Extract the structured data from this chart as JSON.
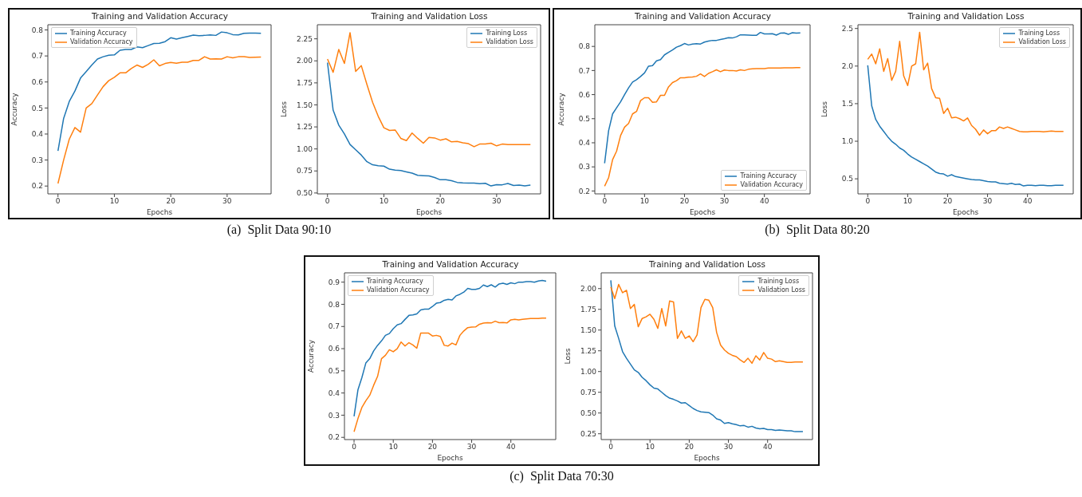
{
  "chart_data": [
    {
      "type": "line",
      "title": "Training and Validation Accuracy",
      "xlabel": "Epochs",
      "ylabel": "Accuracy",
      "annotations": [
        "(a)  Split Data 90:10"
      ],
      "legend": "top left",
      "xlim": [
        -1.8,
        37.8
      ],
      "xticks": [
        0,
        10,
        20,
        30
      ],
      "ylim": [
        0.17,
        0.82
      ],
      "yticks": [
        0.2,
        0.3,
        0.4,
        0.5,
        0.6,
        0.7,
        0.8
      ],
      "x": [
        0,
        1,
        2,
        3,
        4,
        5,
        6,
        7,
        8,
        9,
        10,
        11,
        12,
        13,
        14,
        15,
        16,
        17,
        18,
        19,
        20,
        21,
        22,
        23,
        24,
        25,
        26,
        27,
        28,
        29,
        30,
        31,
        32,
        33,
        34,
        35,
        36
      ],
      "series": [
        {
          "name": "Training Accuracy",
          "color": "#1f77b4",
          "values": [
            0.335,
            0.46,
            0.525,
            0.565,
            0.615,
            0.64,
            0.665,
            0.688,
            0.697,
            0.703,
            0.704,
            0.722,
            0.725,
            0.725,
            0.735,
            0.732,
            0.74,
            0.748,
            0.749,
            0.755,
            0.77,
            0.765,
            0.77,
            0.775,
            0.78,
            0.778,
            0.779,
            0.781,
            0.779,
            0.792,
            0.789,
            0.782,
            0.781,
            0.787,
            0.788,
            0.788,
            0.787
          ]
        },
        {
          "name": "Validation Accuracy",
          "color": "#ff7f0e",
          "values": [
            0.21,
            0.3,
            0.38,
            0.425,
            0.407,
            0.5,
            0.517,
            0.55,
            0.582,
            0.605,
            0.618,
            0.635,
            0.635,
            0.652,
            0.665,
            0.656,
            0.668,
            0.685,
            0.662,
            0.671,
            0.675,
            0.672,
            0.676,
            0.676,
            0.683,
            0.683,
            0.697,
            0.688,
            0.689,
            0.688,
            0.697,
            0.693,
            0.697,
            0.697,
            0.694,
            0.695,
            0.696
          ]
        }
      ]
    },
    {
      "type": "line",
      "title": "Training and Validation Loss",
      "xlabel": "Epochs",
      "ylabel": "Loss",
      "legend": "top right",
      "xlim": [
        -1.8,
        37.8
      ],
      "xticks": [
        0,
        10,
        20,
        30
      ],
      "ylim": [
        0.49,
        2.41
      ],
      "yticks": [
        {
          "value": 0.5,
          "label": "0.50"
        },
        0.75,
        {
          "value": 1,
          "label": "1.00"
        },
        1.25,
        {
          "value": 1.5,
          "label": "1.50"
        },
        1.75,
        {
          "value": 2,
          "label": "2.00"
        },
        2.25
      ],
      "x": [
        0,
        1,
        2,
        3,
        4,
        5,
        6,
        7,
        8,
        9,
        10,
        11,
        12,
        13,
        14,
        15,
        16,
        17,
        18,
        19,
        20,
        21,
        22,
        23,
        24,
        25,
        26,
        27,
        28,
        29,
        30,
        31,
        32,
        33,
        34,
        35,
        36
      ],
      "series": [
        {
          "name": "Training Loss",
          "color": "#1f77b4",
          "values": [
            1.98,
            1.44,
            1.27,
            1.17,
            1.05,
            0.99,
            0.93,
            0.855,
            0.82,
            0.81,
            0.805,
            0.77,
            0.76,
            0.755,
            0.74,
            0.725,
            0.7,
            0.697,
            0.693,
            0.675,
            0.65,
            0.65,
            0.64,
            0.62,
            0.615,
            0.613,
            0.612,
            0.605,
            0.61,
            0.58,
            0.595,
            0.593,
            0.607,
            0.585,
            0.59,
            0.58,
            0.59
          ]
        },
        {
          "name": "Validation Loss",
          "color": "#ff7f0e",
          "values": [
            2.02,
            1.87,
            2.13,
            1.97,
            2.32,
            1.88,
            1.945,
            1.73,
            1.53,
            1.37,
            1.24,
            1.21,
            1.215,
            1.12,
            1.095,
            1.18,
            1.12,
            1.065,
            1.13,
            1.125,
            1.1,
            1.115,
            1.08,
            1.085,
            1.07,
            1.06,
            1.025,
            1.055,
            1.055,
            1.065,
            1.035,
            1.055,
            1.05,
            1.05,
            1.05,
            1.05,
            1.05
          ]
        }
      ]
    },
    {
      "type": "line",
      "title": "Training and Validation Accuracy",
      "xlabel": "Epochs",
      "ylabel": "Accuracy",
      "annotations": [
        "(b)  Split Data 80:20"
      ],
      "legend": "bottom right",
      "xlim": [
        -2.45,
        51.45
      ],
      "xticks": [
        0,
        10,
        20,
        30,
        40
      ],
      "ylim": [
        0.188,
        0.89
      ],
      "yticks": [
        0.2,
        0.3,
        0.4,
        0.5,
        0.6,
        0.7,
        0.8
      ],
      "x": [
        0,
        1,
        2,
        3,
        4,
        5,
        6,
        7,
        8,
        9,
        10,
        11,
        12,
        13,
        14,
        15,
        16,
        17,
        18,
        19,
        20,
        21,
        22,
        23,
        24,
        25,
        26,
        27,
        28,
        29,
        30,
        31,
        32,
        33,
        34,
        35,
        36,
        37,
        38,
        39,
        40,
        41,
        42,
        43,
        44,
        45,
        46,
        47,
        48,
        49
      ],
      "series": [
        {
          "name": "Training Accuracy",
          "color": "#1f77b4",
          "values": [
            0.315,
            0.45,
            0.52,
            0.545,
            0.57,
            0.6,
            0.628,
            0.652,
            0.662,
            0.675,
            0.69,
            0.718,
            0.72,
            0.74,
            0.745,
            0.765,
            0.775,
            0.785,
            0.797,
            0.803,
            0.812,
            0.806,
            0.81,
            0.811,
            0.81,
            0.818,
            0.822,
            0.825,
            0.825,
            0.829,
            0.832,
            0.836,
            0.835,
            0.84,
            0.848,
            0.848,
            0.847,
            0.846,
            0.846,
            0.858,
            0.852,
            0.852,
            0.853,
            0.847,
            0.855,
            0.856,
            0.85,
            0.857,
            0.855,
            0.856
          ]
        },
        {
          "name": "Validation Accuracy",
          "color": "#ff7f0e",
          "values": [
            0.22,
            0.255,
            0.33,
            0.365,
            0.43,
            0.465,
            0.48,
            0.52,
            0.53,
            0.575,
            0.587,
            0.587,
            0.568,
            0.57,
            0.597,
            0.597,
            0.632,
            0.65,
            0.658,
            0.67,
            0.67,
            0.672,
            0.673,
            0.676,
            0.686,
            0.675,
            0.688,
            0.695,
            0.703,
            0.695,
            0.702,
            0.7,
            0.7,
            0.698,
            0.703,
            0.7,
            0.705,
            0.707,
            0.708,
            0.708,
            0.708,
            0.71,
            0.71,
            0.71,
            0.71,
            0.711,
            0.711,
            0.711,
            0.712,
            0.712
          ]
        }
      ]
    },
    {
      "type": "line",
      "title": "Training and Validation Loss",
      "xlabel": "Epochs",
      "ylabel": "Loss",
      "legend": "top right",
      "xlim": [
        -2.45,
        51.45
      ],
      "xticks": [
        0,
        10,
        20,
        30,
        40
      ],
      "ylim": [
        0.3,
        2.55
      ],
      "yticks": [
        0.5,
        {
          "value": 1,
          "label": "1.0"
        },
        1.5,
        {
          "value": 2,
          "label": "2.0"
        },
        2.5
      ],
      "x": [
        0,
        1,
        2,
        3,
        4,
        5,
        6,
        7,
        8,
        9,
        10,
        11,
        12,
        13,
        14,
        15,
        16,
        17,
        18,
        19,
        20,
        21,
        22,
        23,
        24,
        25,
        26,
        27,
        28,
        29,
        30,
        31,
        32,
        33,
        34,
        35,
        36,
        37,
        38,
        39,
        40,
        41,
        42,
        43,
        44,
        45,
        46,
        47,
        48,
        49
      ],
      "series": [
        {
          "name": "Training Loss",
          "color": "#1f77b4",
          "values": [
            2.01,
            1.47,
            1.29,
            1.2,
            1.13,
            1.06,
            1.0,
            0.96,
            0.91,
            0.88,
            0.83,
            0.79,
            0.76,
            0.73,
            0.7,
            0.67,
            0.63,
            0.59,
            0.57,
            0.565,
            0.535,
            0.555,
            0.53,
            0.52,
            0.51,
            0.5,
            0.49,
            0.485,
            0.485,
            0.475,
            0.465,
            0.46,
            0.46,
            0.44,
            0.435,
            0.43,
            0.44,
            0.425,
            0.43,
            0.405,
            0.415,
            0.415,
            0.41,
            0.415,
            0.415,
            0.41,
            0.41,
            0.415,
            0.415,
            0.415
          ]
        },
        {
          "name": "Validation Loss",
          "color": "#ff7f0e",
          "values": [
            2.09,
            2.16,
            2.03,
            2.23,
            1.93,
            2.1,
            1.81,
            1.93,
            2.33,
            1.87,
            1.74,
            2.0,
            2.03,
            2.45,
            1.95,
            2.04,
            1.7,
            1.58,
            1.57,
            1.37,
            1.44,
            1.31,
            1.32,
            1.3,
            1.27,
            1.31,
            1.21,
            1.16,
            1.08,
            1.15,
            1.1,
            1.14,
            1.14,
            1.19,
            1.17,
            1.19,
            1.17,
            1.15,
            1.13,
            1.125,
            1.125,
            1.13,
            1.13,
            1.13,
            1.125,
            1.13,
            1.135,
            1.13,
            1.13,
            1.13
          ]
        }
      ]
    },
    {
      "type": "line",
      "title": "Training and Validation Accuracy",
      "xlabel": "Epochs",
      "ylabel": "Accuracy",
      "annotations": [
        "(c)  Split Data 70:30"
      ],
      "legend": "top left",
      "xlim": [
        -2.45,
        51.45
      ],
      "xticks": [
        0,
        10,
        20,
        30,
        40
      ],
      "ylim": [
        0.19,
        0.942
      ],
      "yticks": [
        0.2,
        0.3,
        0.4,
        0.5,
        0.6,
        0.7,
        0.8,
        0.9
      ],
      "x": [
        0,
        1,
        2,
        3,
        4,
        5,
        6,
        7,
        8,
        9,
        10,
        11,
        12,
        13,
        14,
        15,
        16,
        17,
        18,
        19,
        20,
        21,
        22,
        23,
        24,
        25,
        26,
        27,
        28,
        29,
        30,
        31,
        32,
        33,
        34,
        35,
        36,
        37,
        38,
        39,
        40,
        41,
        42,
        43,
        44,
        45,
        46,
        47,
        48,
        49
      ],
      "series": [
        {
          "name": "Training Accuracy",
          "color": "#1f77b4",
          "values": [
            0.295,
            0.415,
            0.47,
            0.535,
            0.555,
            0.59,
            0.615,
            0.635,
            0.66,
            0.668,
            0.69,
            0.707,
            0.713,
            0.732,
            0.75,
            0.752,
            0.757,
            0.775,
            0.778,
            0.778,
            0.79,
            0.805,
            0.808,
            0.818,
            0.822,
            0.82,
            0.838,
            0.845,
            0.855,
            0.872,
            0.867,
            0.867,
            0.872,
            0.887,
            0.88,
            0.888,
            0.878,
            0.892,
            0.895,
            0.89,
            0.897,
            0.893,
            0.9,
            0.9,
            0.902,
            0.902,
            0.9,
            0.905,
            0.908,
            0.904
          ]
        },
        {
          "name": "Validation Accuracy",
          "color": "#ff7f0e",
          "values": [
            0.225,
            0.285,
            0.335,
            0.365,
            0.39,
            0.435,
            0.475,
            0.555,
            0.57,
            0.595,
            0.586,
            0.6,
            0.63,
            0.612,
            0.627,
            0.617,
            0.602,
            0.67,
            0.67,
            0.67,
            0.657,
            0.66,
            0.655,
            0.615,
            0.612,
            0.625,
            0.617,
            0.66,
            0.68,
            0.695,
            0.697,
            0.698,
            0.71,
            0.715,
            0.717,
            0.716,
            0.724,
            0.717,
            0.718,
            0.716,
            0.73,
            0.732,
            0.73,
            0.732,
            0.734,
            0.736,
            0.736,
            0.736,
            0.738,
            0.738
          ]
        }
      ]
    },
    {
      "type": "line",
      "title": "Training and Validation Loss",
      "xlabel": "Epochs",
      "ylabel": "Loss",
      "legend": "top right",
      "xlim": [
        -2.45,
        51.45
      ],
      "xticks": [
        0,
        10,
        20,
        30,
        40
      ],
      "ylim": [
        0.18,
        2.19
      ],
      "yticks": [
        0.25,
        {
          "value": 0.5,
          "label": "0.50"
        },
        0.75,
        {
          "value": 1,
          "label": "1.00"
        },
        1.25,
        {
          "value": 1.5,
          "label": "1.50"
        },
        1.75,
        {
          "value": 2,
          "label": "2.00"
        }
      ],
      "x": [
        0,
        1,
        2,
        3,
        4,
        5,
        6,
        7,
        8,
        9,
        10,
        11,
        12,
        13,
        14,
        15,
        16,
        17,
        18,
        19,
        20,
        21,
        22,
        23,
        24,
        25,
        26,
        27,
        28,
        29,
        30,
        31,
        32,
        33,
        34,
        35,
        36,
        37,
        38,
        39,
        40,
        41,
        42,
        43,
        44,
        45,
        46,
        47,
        48,
        49
      ],
      "series": [
        {
          "name": "Training Loss",
          "color": "#1f77b4",
          "values": [
            2.1,
            1.55,
            1.4,
            1.24,
            1.16,
            1.09,
            1.02,
            0.99,
            0.93,
            0.89,
            0.84,
            0.8,
            0.79,
            0.75,
            0.71,
            0.68,
            0.665,
            0.645,
            0.62,
            0.625,
            0.59,
            0.555,
            0.53,
            0.515,
            0.51,
            0.505,
            0.475,
            0.43,
            0.415,
            0.375,
            0.385,
            0.37,
            0.36,
            0.345,
            0.35,
            0.33,
            0.34,
            0.32,
            0.31,
            0.315,
            0.3,
            0.3,
            0.29,
            0.295,
            0.29,
            0.285,
            0.285,
            0.275,
            0.275,
            0.275
          ]
        },
        {
          "name": "Validation Loss",
          "color": "#ff7f0e",
          "values": [
            2.02,
            1.88,
            2.05,
            1.95,
            1.98,
            1.76,
            1.81,
            1.54,
            1.64,
            1.66,
            1.69,
            1.63,
            1.52,
            1.76,
            1.55,
            1.85,
            1.84,
            1.4,
            1.49,
            1.4,
            1.43,
            1.36,
            1.44,
            1.77,
            1.87,
            1.86,
            1.77,
            1.47,
            1.32,
            1.26,
            1.22,
            1.195,
            1.18,
            1.14,
            1.11,
            1.16,
            1.1,
            1.19,
            1.14,
            1.23,
            1.16,
            1.15,
            1.12,
            1.13,
            1.12,
            1.11,
            1.11,
            1.115,
            1.115,
            1.115
          ]
        }
      ]
    }
  ]
}
